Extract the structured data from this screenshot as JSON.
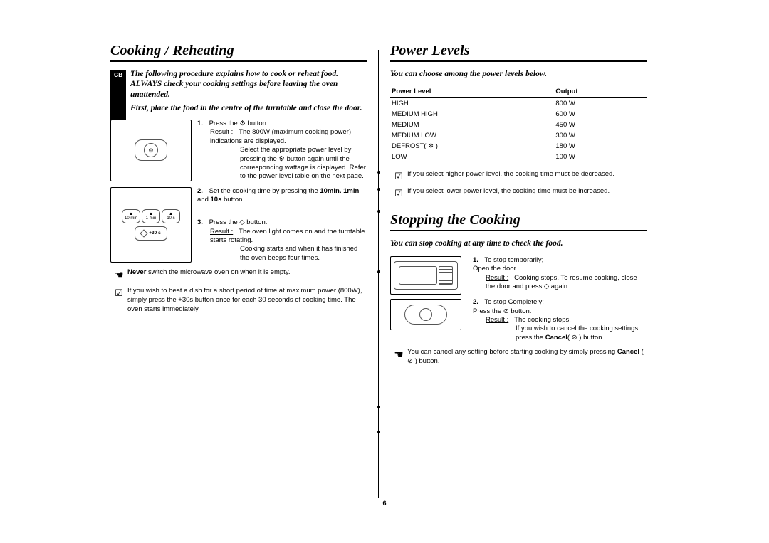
{
  "page_number": "6",
  "lang_badge": "GB",
  "left": {
    "title": "Cooking / Reheating",
    "intro_line1": "The following procedure explains how to cook or reheat food.",
    "intro_line2": "ALWAYS check your cooking settings before leaving the oven unattended.",
    "intro_line3": "First, place the food in the centre of the turntable and close the door.",
    "step1_lead": "Press the ",
    "step1_after": " button.",
    "result_label": "Result :",
    "step1_r1": "The 800W (maximum cooking power) indications are displayed.",
    "step1_r2": "Select the appropriate power level by pressing the ",
    "step1_r3": " button again until the corresponding wattage is displayed. Refer to the power level table on the next page.",
    "step2_a": "Set the cooking time by pressing the ",
    "step2_b": "10min. 1min",
    "step2_c": " and ",
    "step2_d": "10s",
    "step2_e": " button.",
    "btn_10min": "10 min",
    "btn_1min": "1 min",
    "btn_10s": "10 s",
    "pill_label": "+30 s",
    "step3_a": "Press the ",
    "step3_b": " button.",
    "step3_r1": "The oven light comes on and the turntable starts rotating.",
    "step3_r2": "Cooking starts and when it has finished the oven beeps four times.",
    "note1_b": "Never",
    "note1_a": " switch the microwave oven on when it is empty.",
    "note2": "If you wish to heat a dish for a short period of time at maximum power (800W), simply press the +30s button once for each 30 seconds of cooking time. The oven starts immediately."
  },
  "right": {
    "title1": "Power Levels",
    "intro1": "You can choose among the power levels below.",
    "th1": "Power Level",
    "th2": "Output",
    "rows": [
      {
        "level": "HIGH",
        "out": "800 W"
      },
      {
        "level": "MEDIUM HIGH",
        "out": "600 W"
      },
      {
        "level": "MEDIUM",
        "out": "450 W"
      },
      {
        "level": "MEDIUM LOW",
        "out": "300 W"
      },
      {
        "level": "DEFROST( ❄ )",
        "out": "180 W"
      },
      {
        "level": "LOW",
        "out": "100 W"
      }
    ],
    "pnote1": "If you select higher power level, the cooking time must be decreased.",
    "pnote2": "If you select lower power level, the cooking time must be increased.",
    "title2": "Stopping the Cooking",
    "intro2": "You can stop cooking at any time to check the food.",
    "s1_a": "To stop temporarily;",
    "s1_b": "Open the door.",
    "s1_r": "Cooking stops. To resume cooking, close the door and press ",
    "s1_r2": " again.",
    "s2_a": "To stop Completely;",
    "s2_b": "Press the ",
    "s2_c": " button.",
    "s2_r1": "The cooking stops.",
    "s2_r2a": "If you wish to cancel the cooking settings, press the ",
    "s2_r2b": "Cancel",
    "s2_r2c": "( ⊘ ) button.",
    "cnote_a": "You can cancel any setting before starting cooking by simply pressing ",
    "cnote_b": "Cancel",
    "cnote_c": " ( ⊘ ) button."
  }
}
